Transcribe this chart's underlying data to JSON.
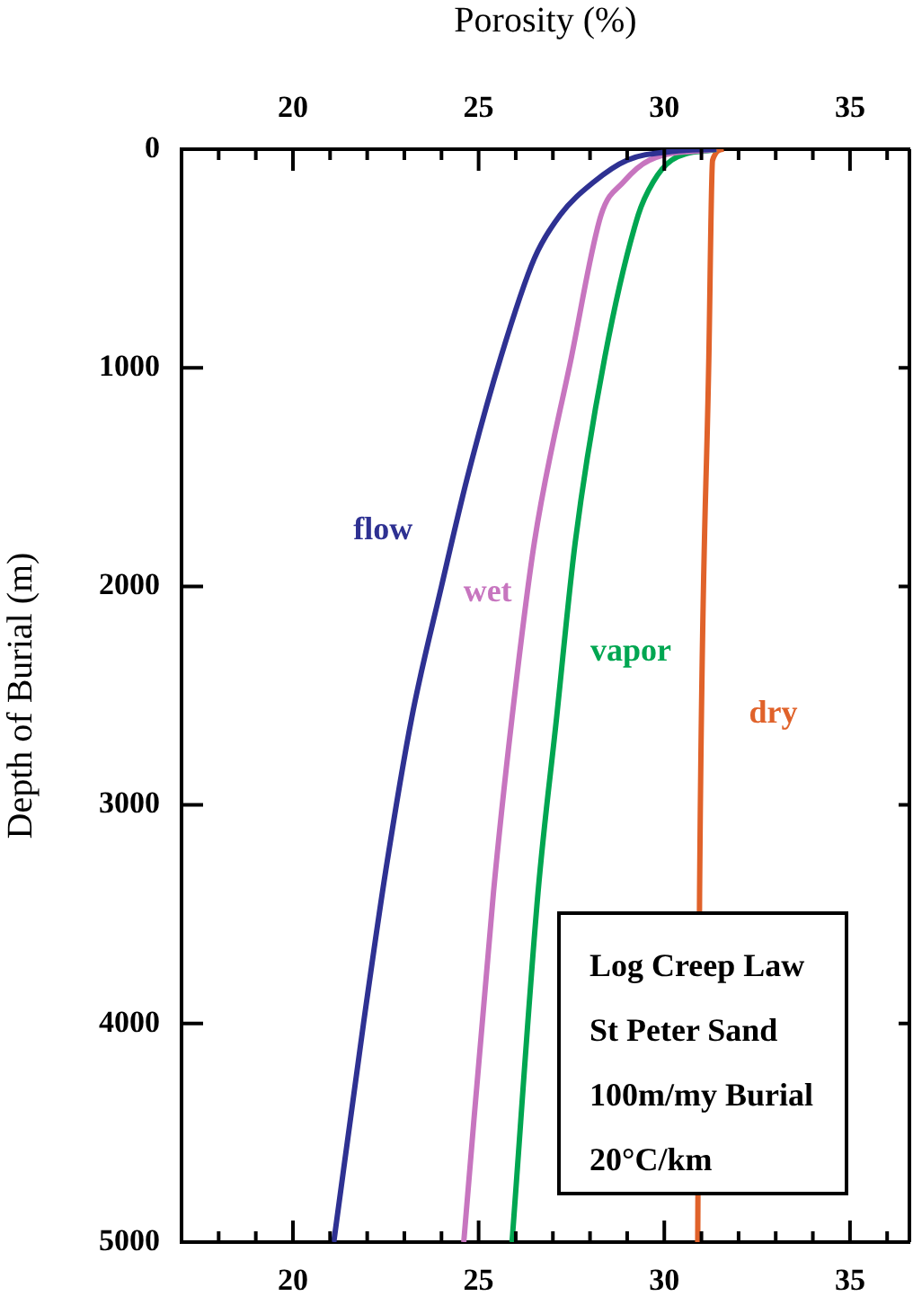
{
  "chart_data": {
    "type": "line",
    "x2label": "Porosity (%)",
    "ylabel": "Depth of Burial (m)",
    "xlim": [
      17,
      36.6
    ],
    "x2lim": [
      17,
      36.6
    ],
    "xticks": [
      {
        "value": 18,
        "label": null
      },
      {
        "value": 19,
        "label": null
      },
      20,
      {
        "value": 21,
        "label": null
      },
      {
        "value": 22,
        "label": null
      },
      {
        "value": 23,
        "label": null
      },
      {
        "value": 24,
        "label": null
      },
      25,
      {
        "value": 26,
        "label": null
      },
      {
        "value": 27,
        "label": null
      },
      {
        "value": 28,
        "label": null
      },
      {
        "value": 29,
        "label": null
      },
      30,
      {
        "value": 31,
        "label": null
      },
      {
        "value": 32,
        "label": null
      },
      {
        "value": 33,
        "label": null
      },
      {
        "value": 34,
        "label": null
      },
      35,
      {
        "value": 36,
        "label": null
      }
    ],
    "x2ticks": [
      {
        "value": 18,
        "label": null
      },
      {
        "value": 19,
        "label": null
      },
      20,
      {
        "value": 21,
        "label": null
      },
      {
        "value": 22,
        "label": null
      },
      {
        "value": 23,
        "label": null
      },
      {
        "value": 24,
        "label": null
      },
      25,
      {
        "value": 26,
        "label": null
      },
      {
        "value": 27,
        "label": null
      },
      {
        "value": 28,
        "label": null
      },
      {
        "value": 29,
        "label": null
      },
      30,
      {
        "value": 31,
        "label": null
      },
      {
        "value": 32,
        "label": null
      },
      {
        "value": 33,
        "label": null
      },
      {
        "value": 34,
        "label": null
      },
      35,
      {
        "value": 36,
        "label": null
      }
    ],
    "ylim": [
      5000,
      0
    ],
    "yticks": [
      0,
      1000,
      2000,
      3000,
      4000,
      5000
    ],
    "grid": false,
    "legend": false,
    "marker": "none",
    "line_style": "solid",
    "series": [
      {
        "name": "flow",
        "color": "#2e3192",
        "x": [
          31.4,
          30.2,
          29.0,
          28.1,
          27.2,
          26.5,
          25.6,
          24.7,
          24.0,
          23.2,
          22.5,
          21.9,
          21.1
        ],
        "values": [
          0,
          10,
          50,
          150,
          300,
          500,
          950,
          1500,
          2000,
          2600,
          3300,
          4000,
          5000
        ]
      },
      {
        "name": "wet",
        "color": "#c775bf",
        "x": [
          31.4,
          29.6,
          28.9,
          28.3,
          27.5,
          26.5,
          25.9,
          25.4,
          24.6
        ],
        "values": [
          0,
          50,
          150,
          300,
          950,
          1800,
          2600,
          3400,
          5000
        ]
      },
      {
        "name": "vapor",
        "color": "#00a651",
        "x": [
          31.4,
          30.2,
          29.7,
          29.3,
          28.4,
          27.6,
          27.1,
          26.6,
          25.9
        ],
        "values": [
          0,
          50,
          150,
          300,
          950,
          1800,
          2600,
          3400,
          5000
        ]
      },
      {
        "name": "dry",
        "color": "#e0622a",
        "x": [
          31.6,
          31.3,
          31.2,
          30.95,
          30.9
        ],
        "values": [
          0,
          50,
          950,
          3400,
          5000
        ]
      }
    ],
    "annotations": [
      "Log Creep Law",
      "St Peter Sand",
      "100m/my Burial",
      "20°C/km"
    ]
  }
}
